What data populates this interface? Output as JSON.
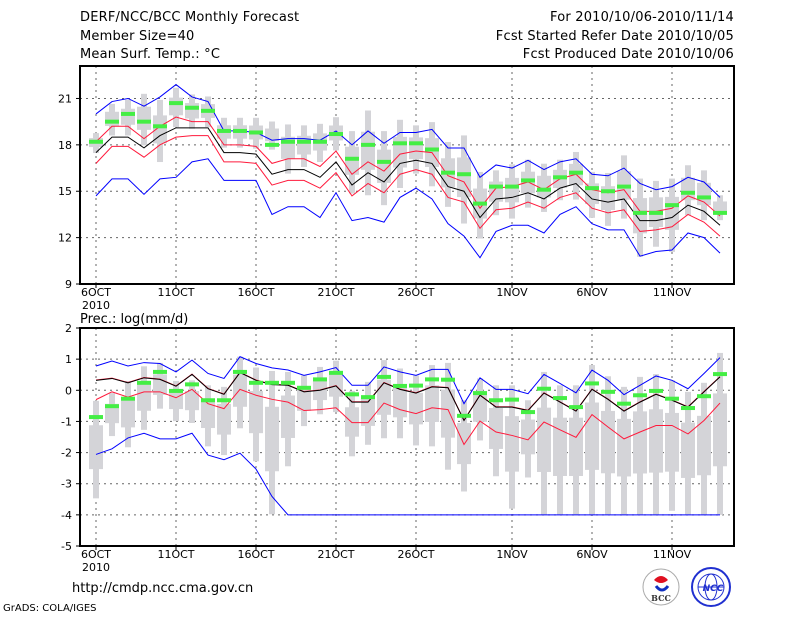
{
  "header": {
    "title": "DERF/NCC/BCC Monthly Forecast",
    "member_size": "Member Size=40",
    "variable": "Mean Surf. Temp.: °C",
    "period": "For 2010/10/06-2010/11/14",
    "start_date": "Fcst Started Refer Date 2010/10/05",
    "produced_date": "Fcst Produced Date 2010/10/06"
  },
  "footer": {
    "url": "http://cmdp.ncc.cma.gov.cn",
    "grads": "GrADS: COLA/IGES",
    "logo_bcc": "BCC",
    "logo_ncc": "NCC"
  },
  "colors": {
    "max_min": "#0000ff",
    "spread": "#ff1a3c",
    "mean": "#000000",
    "obs": "#44ee44",
    "box": "#d4d4d8"
  },
  "chart_data": [
    {
      "type": "line",
      "title": "Mean Surf. Temp.: °C",
      "x_tick_labels": [
        "6OCT",
        "11OCT",
        "16OCT",
        "21OCT",
        "26OCT",
        "1NOV",
        "6NOV",
        "11NOV"
      ],
      "x_tick_days": [
        0,
        5,
        10,
        15,
        20,
        26,
        31,
        36
      ],
      "x_year_label": "2010",
      "y_ticks": [
        9,
        12,
        15,
        18,
        21
      ],
      "ylim": [
        9,
        23.1
      ],
      "grid": true,
      "series": [
        {
          "name": "max",
          "values": [
            20.0,
            20.8,
            21.0,
            20.5,
            21.1,
            21.9,
            21.1,
            20.8,
            18.9,
            18.9,
            18.8,
            18.3,
            18.4,
            18.4,
            18.3,
            18.9,
            18.0,
            18.9,
            18.1,
            18.8,
            18.8,
            19.0,
            17.8,
            17.8,
            15.9,
            16.7,
            16.5,
            17.0,
            16.4,
            16.9,
            17.1,
            16.1,
            16.0,
            16.5,
            15.5,
            15.1,
            15.3,
            15.9,
            15.6,
            14.6
          ]
        },
        {
          "name": "upper",
          "values": [
            18.2,
            19.2,
            19.2,
            18.4,
            19.2,
            19.8,
            19.5,
            19.5,
            18.0,
            18.0,
            17.9,
            16.8,
            17.1,
            17.1,
            16.6,
            17.6,
            16.1,
            16.9,
            16.3,
            17.4,
            17.6,
            17.5,
            16.0,
            15.6,
            13.9,
            15.2,
            15.3,
            15.6,
            15.1,
            15.8,
            16.1,
            15.1,
            14.9,
            15.1,
            13.7,
            13.7,
            13.9,
            14.7,
            14.3,
            13.4
          ]
        },
        {
          "name": "mean",
          "values": [
            17.5,
            18.5,
            18.5,
            17.8,
            18.6,
            19.1,
            19.1,
            19.1,
            17.5,
            17.5,
            17.4,
            16.1,
            16.4,
            16.4,
            15.9,
            16.9,
            15.4,
            16.2,
            15.6,
            16.8,
            17.0,
            16.8,
            15.3,
            15.0,
            13.3,
            14.5,
            14.6,
            14.9,
            14.5,
            15.2,
            15.5,
            14.5,
            14.3,
            14.5,
            13.1,
            13.1,
            13.3,
            14.1,
            13.7,
            12.8
          ]
        },
        {
          "name": "lower",
          "values": [
            16.8,
            17.9,
            17.9,
            17.2,
            18.0,
            18.5,
            18.6,
            18.6,
            16.9,
            16.9,
            16.8,
            15.4,
            15.7,
            15.7,
            15.2,
            16.2,
            14.7,
            15.5,
            14.9,
            16.1,
            16.4,
            16.1,
            14.6,
            14.3,
            12.6,
            13.8,
            13.9,
            14.3,
            13.9,
            14.6,
            14.9,
            13.9,
            13.6,
            13.8,
            12.4,
            12.5,
            12.7,
            13.5,
            13.0,
            12.1
          ]
        },
        {
          "name": "min",
          "values": [
            14.7,
            15.8,
            15.8,
            14.8,
            15.8,
            15.9,
            16.9,
            17.1,
            15.7,
            15.7,
            15.7,
            13.5,
            14.0,
            14.0,
            13.3,
            14.9,
            13.1,
            13.3,
            13.0,
            14.6,
            15.2,
            14.5,
            12.9,
            12.1,
            10.7,
            12.4,
            12.8,
            12.8,
            12.3,
            13.5,
            14.0,
            12.9,
            12.5,
            12.5,
            10.8,
            11.1,
            11.2,
            12.3,
            12.0,
            11.0
          ]
        },
        {
          "name": "obs",
          "values": [
            18.2,
            19.5,
            20.0,
            19.5,
            19.2,
            20.7,
            20.4,
            20.2,
            18.9,
            18.9,
            18.8,
            18.0,
            18.2,
            18.2,
            18.2,
            18.7,
            17.1,
            18.0,
            16.9,
            18.1,
            18.1,
            17.7,
            16.2,
            16.1,
            14.2,
            15.3,
            15.3,
            15.7,
            15.1,
            15.9,
            16.2,
            15.2,
            15.0,
            15.3,
            13.6,
            13.6,
            14.1,
            14.9,
            14.6,
            13.6
          ]
        },
        {
          "name": "whisker_high",
          "values": [
            18.76,
            20.65,
            20.91,
            21.3,
            20.91,
            21.69,
            21.26,
            21.13,
            19.75,
            19.75,
            19.75,
            19.51,
            19.32,
            19.26,
            19.36,
            19.79,
            18.89,
            20.22,
            18.89,
            19.62,
            19.26,
            19.47,
            18.18,
            18.61,
            16.25,
            16.35,
            16.74,
            17.04,
            16.78,
            17.04,
            17.54,
            16.25,
            16.18,
            17.32,
            15.82,
            15.67,
            15.82,
            16.68,
            16.35,
            14.74
          ]
        },
        {
          "name": "whisker_low",
          "values": [
            17.47,
            18.61,
            18.61,
            17.97,
            16.89,
            19.15,
            19.04,
            19.15,
            17.82,
            17.82,
            17.75,
            17.69,
            16.14,
            16.57,
            16.89,
            17.64,
            14.85,
            14.74,
            14.1,
            15.21,
            16.14,
            15.32,
            13.99,
            12.91,
            11.94,
            13.45,
            13.23,
            13.94,
            13.66,
            14.42,
            14.46,
            13.28,
            12.76,
            13.23,
            10.76,
            11.41,
            11.08,
            13.45,
            13.13,
            13.13
          ]
        }
      ]
    },
    {
      "type": "line",
      "title": "Prec.: log(mm/d)",
      "x_tick_labels": [
        "6OCT",
        "11OCT",
        "16OCT",
        "21OCT",
        "26OCT",
        "1NOV",
        "6NOV",
        "11NOV"
      ],
      "x_tick_days": [
        0,
        5,
        10,
        15,
        20,
        26,
        31,
        36
      ],
      "x_year_label": "2010",
      "y_ticks": [
        -5,
        -4,
        -3,
        -2,
        -1,
        0,
        1,
        2
      ],
      "ylim": [
        -5,
        2
      ],
      "grid": true,
      "series": [
        {
          "name": "max",
          "values": [
            0.78,
            0.94,
            0.78,
            0.89,
            0.86,
            0.59,
            0.97,
            0.54,
            0.38,
            1.08,
            0.86,
            0.72,
            0.65,
            0.48,
            0.59,
            0.73,
            0.16,
            0.16,
            0.75,
            0.59,
            0.48,
            0.67,
            0.67,
            -0.43,
            0.4,
            0.03,
            0.03,
            -0.11,
            0.51,
            0.22,
            -0.08,
            0.65,
            0.32,
            -0.14,
            0.16,
            0.46,
            0.32,
            0.05,
            0.54,
            1.05
          ]
        },
        {
          "name": "upper",
          "values": [
            0.33,
            0.39,
            0.25,
            0.41,
            0.36,
            0.14,
            0.52,
            0.06,
            -0.12,
            0.58,
            0.33,
            0.19,
            0.17,
            -0.04,
            0.01,
            0.15,
            -0.37,
            -0.37,
            0.25,
            0.04,
            -0.08,
            0.12,
            0.09,
            -0.96,
            -0.15,
            -0.53,
            -0.53,
            -0.64,
            -0.08,
            -0.37,
            -0.66,
            0.04,
            -0.28,
            -0.66,
            -0.37,
            -0.12,
            -0.31,
            -0.53,
            -0.04,
            0.44
          ]
        },
        {
          "name": "mean",
          "values": [
            0.32,
            0.38,
            0.24,
            0.4,
            0.35,
            0.13,
            0.51,
            0.05,
            -0.13,
            0.57,
            0.32,
            0.18,
            0.16,
            -0.05,
            0.0,
            0.14,
            -0.38,
            -0.38,
            0.24,
            0.03,
            -0.09,
            0.11,
            0.08,
            -0.97,
            -0.16,
            -0.54,
            -0.54,
            -0.65,
            -0.09,
            -0.38,
            -0.67,
            0.03,
            -0.29,
            -0.67,
            -0.38,
            -0.13,
            -0.32,
            -0.54,
            -0.05,
            0.43
          ]
        },
        {
          "name": "lower",
          "values": [
            -0.3,
            -0.05,
            -0.22,
            -0.05,
            -0.05,
            -0.24,
            0.03,
            -0.43,
            -0.59,
            0.03,
            -0.16,
            -0.29,
            -0.38,
            -0.65,
            -0.62,
            -0.56,
            -1.04,
            -1.04,
            -0.41,
            -0.62,
            -0.75,
            -0.56,
            -0.62,
            -1.74,
            -0.99,
            -1.34,
            -1.45,
            -1.59,
            -1.02,
            -1.27,
            -1.51,
            -0.78,
            -1.18,
            -1.56,
            -1.34,
            -1.13,
            -1.13,
            -1.4,
            -0.97,
            -0.41
          ]
        },
        {
          "name": "min",
          "values": [
            -2.06,
            -1.88,
            -1.53,
            -1.38,
            -1.56,
            -1.56,
            -1.38,
            -2.08,
            -2.23,
            -2.02,
            -2.53,
            -3.41,
            -4,
            -4,
            -4,
            -4,
            -4,
            -4,
            -4,
            -4,
            -4,
            -4,
            -4,
            -4,
            -4,
            -4,
            -4,
            -4,
            -4,
            -4,
            -4,
            -4,
            -4,
            -4,
            -4,
            -4,
            -4,
            -4,
            -4,
            -4
          ]
        },
        {
          "name": "obs",
          "values": [
            -0.86,
            -0.51,
            -0.27,
            0.24,
            0.59,
            -0.02,
            0.19,
            -0.32,
            -0.32,
            0.59,
            0.24,
            0.24,
            0.24,
            0.08,
            0.35,
            0.56,
            -0.13,
            -0.22,
            0.43,
            0.14,
            0.15,
            0.35,
            0.34,
            -0.82,
            -0.09,
            -0.32,
            -0.3,
            -0.7,
            0.05,
            -0.25,
            -0.54,
            0.22,
            -0.05,
            -0.43,
            -0.16,
            -0.02,
            -0.27,
            -0.57,
            -0.19,
            0.52
          ]
        },
        {
          "name": "whisker_high",
          "values": [
            -0.34,
            -0.09,
            0.3,
            0.77,
            0.88,
            0.3,
            0.32,
            0.16,
            0.11,
            1.08,
            0.73,
            0.62,
            0.59,
            0.48,
            0.75,
            0.95,
            -0.02,
            0.27,
            0.97,
            0.7,
            0.48,
            0.81,
            0.88,
            -0.32,
            0.38,
            0.16,
            0.16,
            -0.32,
            0.59,
            0.16,
            0.16,
            0.81,
            0.45,
            0.11,
            0.43,
            0.52,
            0.32,
            -0.05,
            0.24,
            1.2
          ]
        },
        {
          "name": "whisker_low",
          "values": [
            -3.47,
            -1.47,
            -1.83,
            -1.27,
            -0.59,
            -0.99,
            -1.05,
            -1.8,
            -2.08,
            -1.22,
            -2.28,
            -3.98,
            -2.44,
            -1.15,
            -0.77,
            -0.7,
            -2.12,
            -1.75,
            -1.54,
            -1.54,
            -1.77,
            -1.8,
            -2.55,
            -3.25,
            -1.61,
            -2.76,
            -3.8,
            -2.8,
            -4,
            -4,
            -4,
            -4,
            -4,
            -4,
            -4,
            -4,
            -3.87,
            -4,
            -4,
            -4
          ]
        }
      ]
    }
  ]
}
